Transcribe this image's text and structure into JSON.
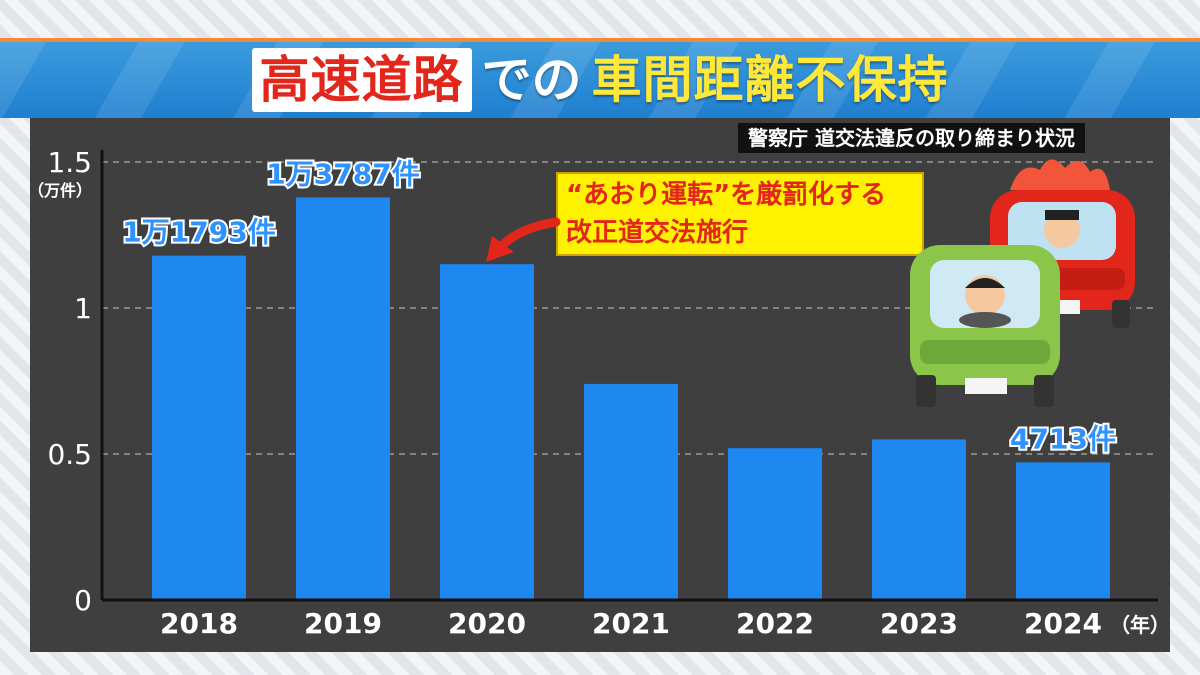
{
  "title": {
    "highlight": "高速道路",
    "middle": "での",
    "main": "車間距離不保持"
  },
  "source": "警察庁 道交法違反の取り締まり状況",
  "callout": {
    "line1": "“あおり運転”を厳罰化する",
    "line2": "改正道交法施行"
  },
  "chart_data": {
    "type": "bar",
    "categories": [
      "2018",
      "2019",
      "2020",
      "2021",
      "2022",
      "2023",
      "2024"
    ],
    "values": [
      1.1793,
      1.3787,
      1.15,
      0.74,
      0.52,
      0.55,
      0.4713
    ],
    "data_labels": [
      "1万1793件",
      "1万3787件",
      "",
      "",
      "",
      "",
      "4713件"
    ],
    "ylim": [
      0,
      1.5
    ],
    "yticks": [
      "0",
      "0.5",
      "1",
      "1.5"
    ],
    "ylabel": "（万件）",
    "xunit": "（年）",
    "grid": true,
    "bar_color": "#1e88f0"
  },
  "colors": {
    "title_red": "#e2261b",
    "title_yellow": "#ffe83a",
    "callout_bg": "#fff200",
    "panel_bg": "#3f3f3f",
    "bar": "#1e88f0"
  },
  "icons": {
    "arrow": "red-arrow-icon",
    "cars": "tailgating-cars-illustration"
  }
}
